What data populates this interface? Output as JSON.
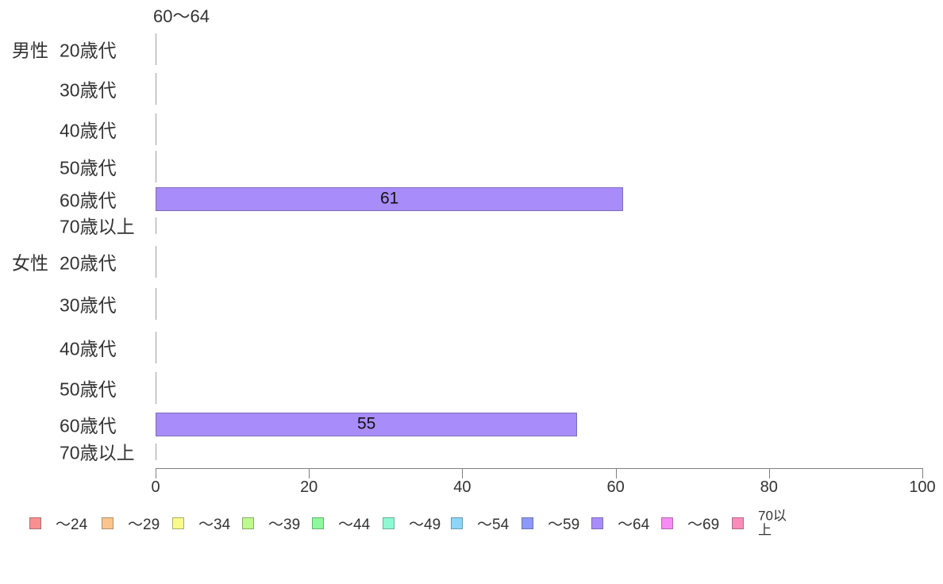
{
  "chart_data": {
    "type": "bar",
    "orientation": "horizontal",
    "stacked": true,
    "title": "60～64",
    "groups": [
      {
        "label": "男性",
        "categories": [
          "20歳代",
          "30歳代",
          "40歳代",
          "50歳代",
          "60歳代",
          "70歳以上"
        ]
      },
      {
        "label": "女性",
        "categories": [
          "20歳代",
          "30歳代",
          "40歳代",
          "50歳代",
          "60歳代",
          "70歳以上"
        ]
      }
    ],
    "series": [
      {
        "name": "～24",
        "color": "#f98f8f",
        "values": [
          0,
          0,
          0,
          0,
          0,
          0,
          0,
          0,
          0,
          0,
          0,
          0
        ]
      },
      {
        "name": "～29",
        "color": "#fac58c",
        "values": [
          0,
          0,
          0,
          0,
          0,
          0,
          0,
          0,
          0,
          0,
          0,
          0
        ]
      },
      {
        "name": "～34",
        "color": "#f8fa8c",
        "values": [
          0,
          0,
          0,
          0,
          0,
          0,
          0,
          0,
          0,
          0,
          0,
          0
        ]
      },
      {
        "name": "～39",
        "color": "#bdf98c",
        "values": [
          0,
          0,
          0,
          0,
          0,
          0,
          0,
          0,
          0,
          0,
          0,
          0
        ]
      },
      {
        "name": "～44",
        "color": "#8cf99d",
        "values": [
          0,
          0,
          0,
          0,
          0,
          0,
          0,
          0,
          0,
          0,
          0,
          0
        ]
      },
      {
        "name": "～49",
        "color": "#8cf9d3",
        "values": [
          0,
          0,
          0,
          0,
          0,
          0,
          0,
          0,
          0,
          0,
          0,
          0
        ]
      },
      {
        "name": "～54",
        "color": "#8cd6f9",
        "values": [
          0,
          0,
          0,
          0,
          0,
          0,
          0,
          0,
          0,
          0,
          0,
          0
        ]
      },
      {
        "name": "～59",
        "color": "#8c99f9",
        "values": [
          0,
          0,
          0,
          0,
          0,
          0,
          0,
          0,
          0,
          0,
          0,
          0
        ]
      },
      {
        "name": "～64",
        "color": "#a88cfa",
        "values": [
          0,
          0,
          0,
          0,
          61,
          0,
          0,
          0,
          0,
          0,
          55,
          0
        ]
      },
      {
        "name": "～69",
        "color": "#f78cf5",
        "values": [
          0,
          0,
          0,
          0,
          0,
          0,
          0,
          0,
          0,
          0,
          0,
          0
        ]
      },
      {
        "name": "70以上",
        "color": "#f98cb9",
        "values": [
          0,
          0,
          0,
          0,
          0,
          0,
          0,
          0,
          0,
          0,
          0,
          0
        ]
      }
    ],
    "xlim": [
      0,
      100
    ],
    "x_tick_labels": [
      "0",
      "20",
      "40",
      "60",
      "80",
      "100"
    ],
    "legend_position": "bottom",
    "grid": false,
    "bar_labels": true,
    "axis_color": "#808080",
    "text_color": "#333333"
  }
}
